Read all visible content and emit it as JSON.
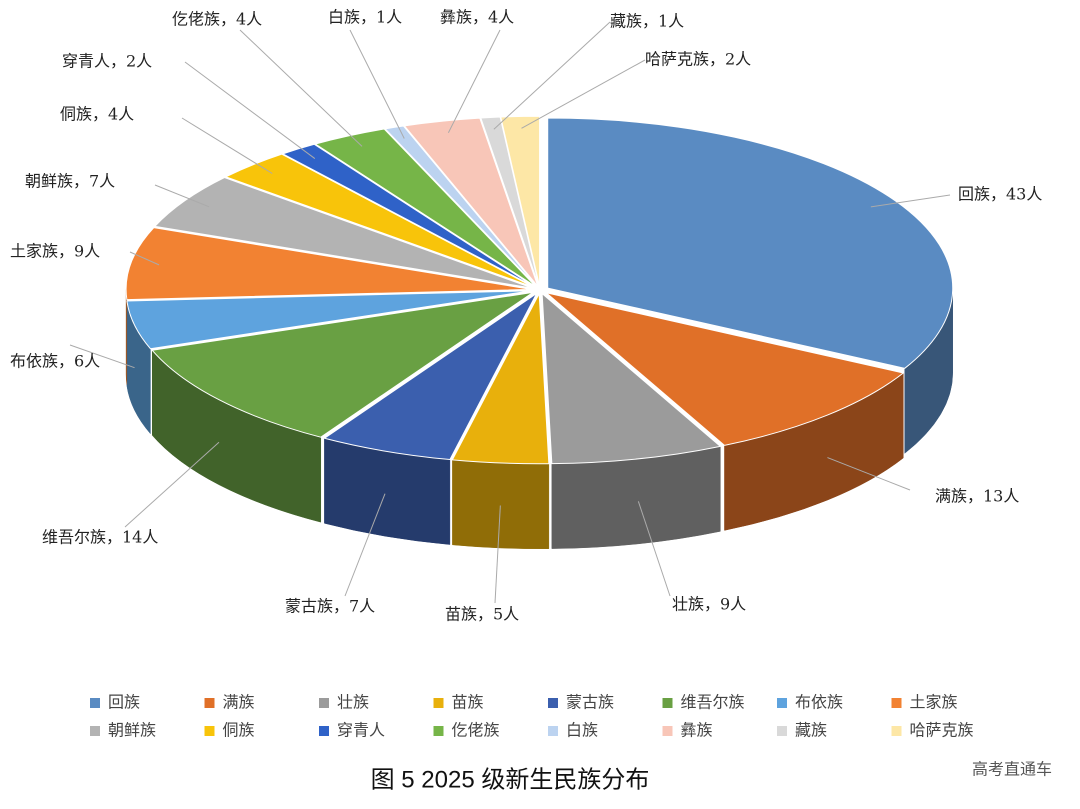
{
  "chart_data": {
    "type": "pie3d",
    "title": "图 5 2025 级新生民族分布",
    "watermark": "高考直通车",
    "categories": [
      "回族",
      "满族",
      "壮族",
      "苗族",
      "蒙古族",
      "维吾尔族",
      "布依族",
      "土家族",
      "朝鲜族",
      "侗族",
      "穿青人",
      "仡佬族",
      "白族",
      "彝族",
      "藏族",
      "哈萨克族"
    ],
    "values": [
      43,
      13,
      9,
      5,
      7,
      14,
      6,
      9,
      7,
      4,
      2,
      4,
      1,
      4,
      1,
      2
    ],
    "value_labels": [
      "回族，43人",
      "满族，13人",
      "壮族，9人",
      "苗族，5人",
      "蒙古族，7人",
      "维吾尔族，14人",
      "布依族，6人",
      "土家族，9人",
      "朝鲜族，7人",
      "侗族，4人",
      "穿青人，2人",
      "仡佬族，4人",
      "白族，1人",
      "彝族，4人",
      "藏族，1人",
      "哈萨克族，2人"
    ],
    "colors": [
      "#5a8bc2",
      "#e07028",
      "#9b9b9b",
      "#e8b00c",
      "#3b5fae",
      "#69a043",
      "#5ea3de",
      "#f28232",
      "#b3b3b3",
      "#f8c40a",
      "#2f62c8",
      "#76b548",
      "#bcd3f0",
      "#f8c6b8",
      "#d9d9d9",
      "#fde7a6"
    ]
  }
}
